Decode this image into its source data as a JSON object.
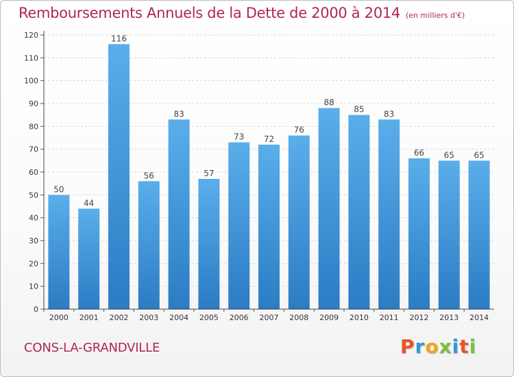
{
  "title": "Remboursements Annuels de la Dette de 2000 à 2014",
  "unit_label": "(en milliers d'€)",
  "city": "CONS-LA-GRANDVILLE",
  "logo": {
    "text": "Proxiti",
    "colors": [
      "#e8552b",
      "#2e9bd6",
      "#f0a818",
      "#7ac142",
      "#2e9bd6",
      "#e8552b",
      "#7ac142"
    ]
  },
  "colors": {
    "bar_top": "#5aaeea",
    "bar_bottom": "#2b7cc4",
    "title": "#b0245a",
    "grid": "#d6d6d6"
  },
  "chart_data": {
    "type": "bar",
    "title": "Remboursements Annuels de la Dette de 2000 à 2014",
    "xlabel": "",
    "ylabel": "",
    "categories": [
      "2000",
      "2001",
      "2002",
      "2003",
      "2004",
      "2005",
      "2006",
      "2007",
      "2008",
      "2009",
      "2010",
      "2011",
      "2012",
      "2013",
      "2014"
    ],
    "values": [
      50,
      44,
      116,
      56,
      83,
      57,
      73,
      72,
      76,
      88,
      85,
      83,
      66,
      65,
      65
    ],
    "ylim": [
      0,
      120
    ],
    "yticks": [
      0,
      10,
      20,
      30,
      40,
      50,
      60,
      70,
      80,
      90,
      100,
      110,
      120
    ],
    "grid": true,
    "legend": "none"
  }
}
